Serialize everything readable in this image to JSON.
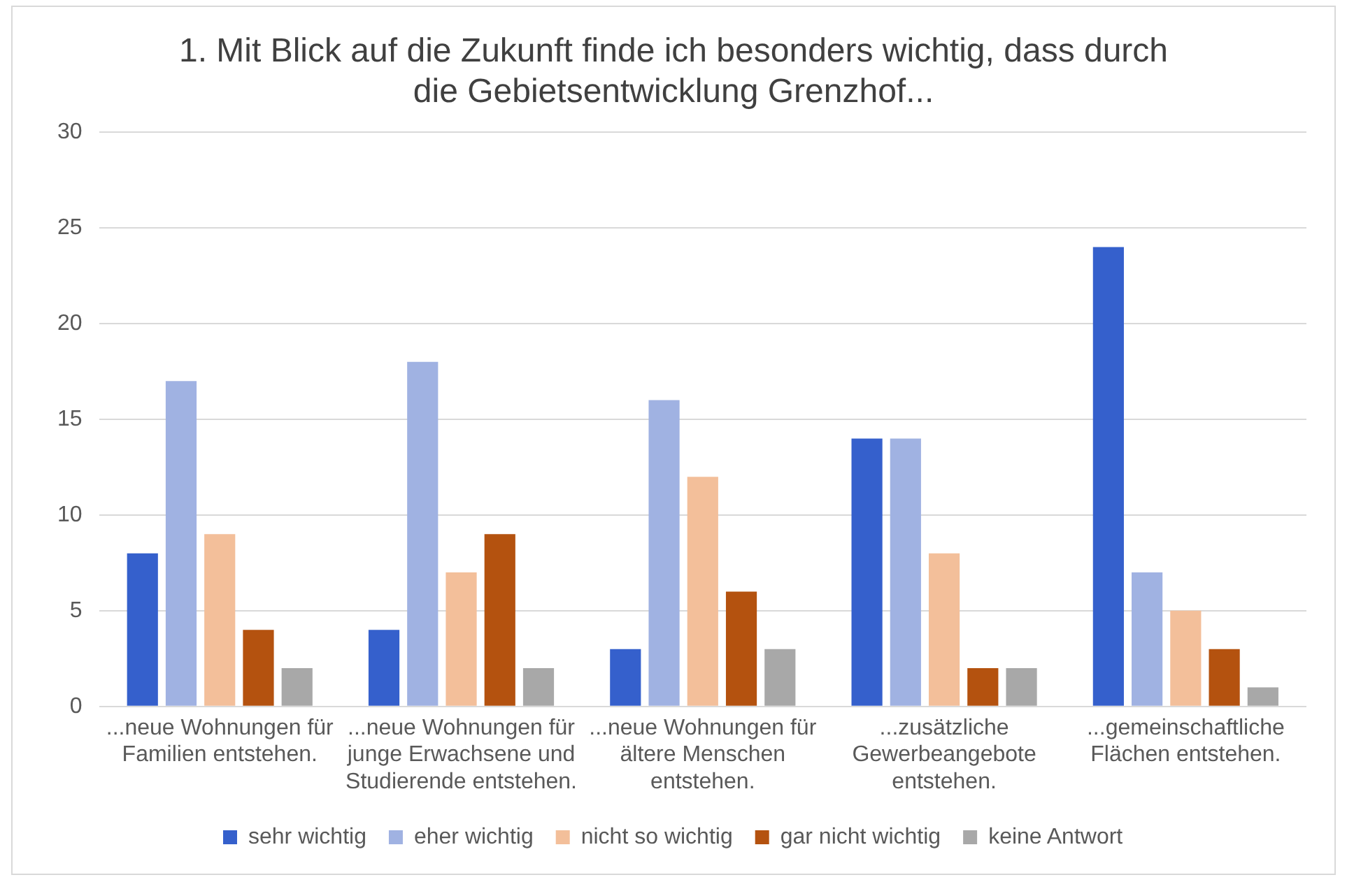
{
  "chart_data": {
    "type": "bar",
    "title": "1. Mit Blick auf die Zukunft finde ich besonders wichtig, dass durch die Gebietsentwicklung Grenzhof...",
    "categories": [
      "...neue Wohnungen für Familien entstehen.",
      "...neue Wohnungen für junge Erwachsene und Studierende entstehen.",
      "...neue Wohnungen für ältere Menschen entstehen.",
      "...zusätzliche Gewerbeangebote entstehen.",
      "...gemeinschaftliche Flächen entstehen."
    ],
    "series": [
      {
        "name": "sehr wichtig",
        "color": "#3560cc",
        "values": [
          8,
          4,
          3,
          14,
          24
        ]
      },
      {
        "name": "eher wichtig",
        "color": "#a0b2e2",
        "values": [
          17,
          18,
          16,
          14,
          7
        ]
      },
      {
        "name": "nicht so wichtig",
        "color": "#f3bf9a",
        "values": [
          9,
          7,
          12,
          8,
          5
        ]
      },
      {
        "name": "gar nicht wichtig",
        "color": "#b4520f",
        "values": [
          4,
          9,
          6,
          2,
          3
        ]
      },
      {
        "name": "keine Antwort",
        "color": "#a8a8a8",
        "values": [
          2,
          2,
          3,
          2,
          1
        ]
      }
    ],
    "ylim": [
      0,
      30
    ],
    "yticks": [
      0,
      5,
      10,
      15,
      20,
      25,
      30
    ],
    "grid": "y",
    "legend": "bottom"
  }
}
